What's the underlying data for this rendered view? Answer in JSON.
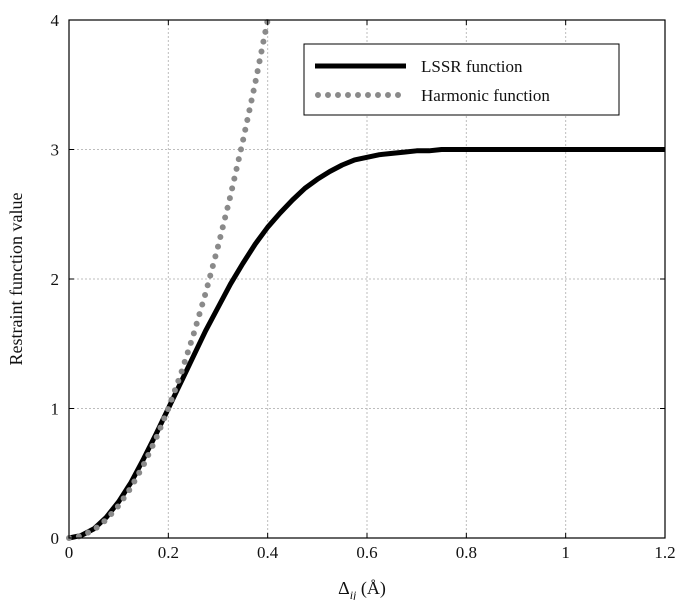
{
  "chart_data": {
    "type": "line",
    "xlabel_main": "Δ",
    "xlabel_sub": "ij",
    "xlabel_unit": " (Å)",
    "ylabel": "Restraint function value",
    "xlim": [
      0,
      1.2
    ],
    "ylim": [
      0,
      4
    ],
    "xticks": [
      "0",
      "0.2",
      "0.4",
      "0.6",
      "0.8",
      "1",
      "1.2"
    ],
    "yticks": [
      "0",
      "1",
      "2",
      "3",
      "4"
    ],
    "grid": true,
    "legend_position": "top-right",
    "series": [
      {
        "name": "LSSR function",
        "style": "solid",
        "color": "#000000",
        "x": [
          0,
          0.025,
          0.05,
          0.075,
          0.1,
          0.125,
          0.15,
          0.175,
          0.2,
          0.225,
          0.25,
          0.275,
          0.3,
          0.325,
          0.35,
          0.375,
          0.4,
          0.425,
          0.45,
          0.475,
          0.5,
          0.525,
          0.55,
          0.575,
          0.6,
          0.625,
          0.65,
          0.675,
          0.7,
          0.725,
          0.75,
          0.775,
          0.8,
          0.85,
          0.9,
          1.0,
          1.1,
          1.2
        ],
        "y": [
          0,
          0.02,
          0.07,
          0.16,
          0.28,
          0.43,
          0.61,
          0.8,
          1.0,
          1.2,
          1.4,
          1.6,
          1.78,
          1.96,
          2.12,
          2.27,
          2.4,
          2.51,
          2.61,
          2.7,
          2.77,
          2.83,
          2.88,
          2.92,
          2.94,
          2.96,
          2.97,
          2.98,
          2.99,
          2.99,
          3.0,
          3.0,
          3.0,
          3.0,
          3.0,
          3.0,
          3.0,
          3.0
        ]
      },
      {
        "name": "Harmonic function",
        "style": "dotted",
        "color": "#8a8a8a",
        "x": [
          0,
          0.025,
          0.05,
          0.075,
          0.1,
          0.125,
          0.15,
          0.175,
          0.2,
          0.225,
          0.25,
          0.275,
          0.3,
          0.325,
          0.35,
          0.375,
          0.4
        ],
        "y": [
          0,
          0.016,
          0.0625,
          0.141,
          0.25,
          0.391,
          0.563,
          0.766,
          1.0,
          1.266,
          1.563,
          1.891,
          2.25,
          2.641,
          3.063,
          3.516,
          4.0
        ]
      }
    ]
  }
}
